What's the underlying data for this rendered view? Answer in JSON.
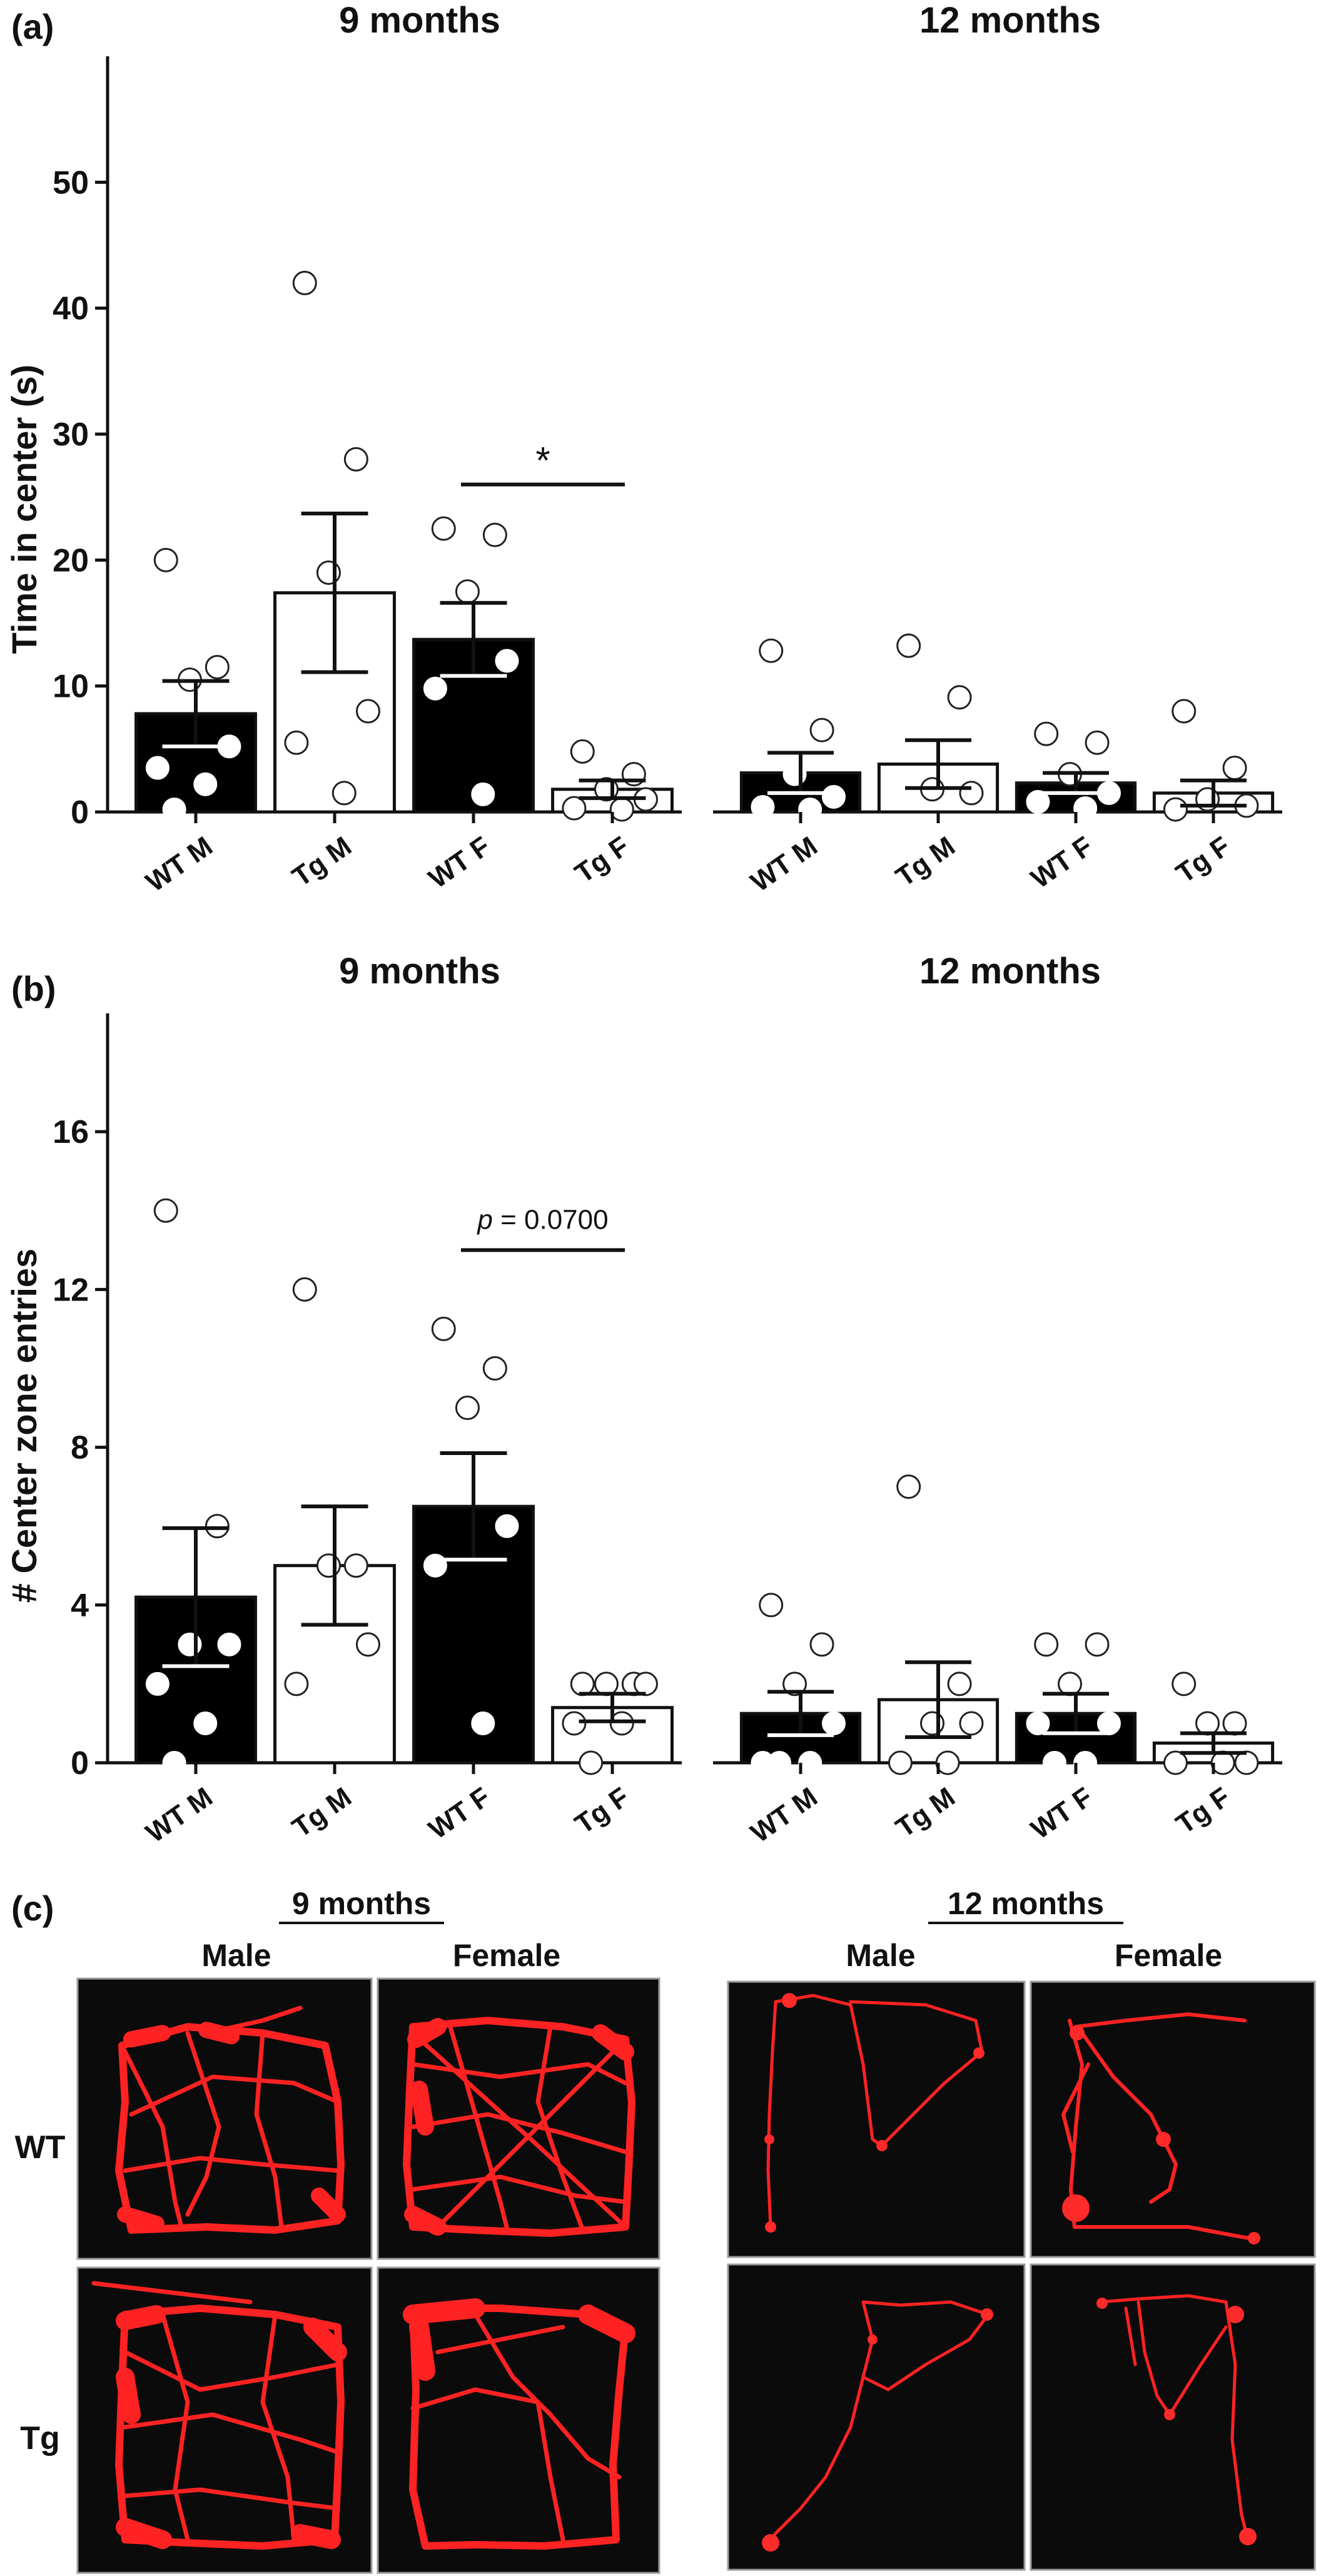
{
  "panels": {
    "a": {
      "label": "(a)"
    },
    "b": {
      "label": "(b)"
    },
    "c": {
      "label": "(c)",
      "age_9": "9 months",
      "age_12": "12 months",
      "col_male": "Male",
      "col_female": "Female",
      "row_wt": "WT",
      "row_tg": "Tg"
    }
  },
  "colors": {
    "bar_wt": "#000000",
    "bar_tg": "#ffffff",
    "trace": "#ff2222",
    "arena": "#0b0b0b"
  },
  "chart_data": [
    {
      "type": "bar",
      "panel": "a",
      "ylabel": "Time in  center (s)",
      "ylim": [
        0,
        60
      ],
      "yticks": [
        0,
        10,
        20,
        30,
        40,
        50
      ],
      "groups": [
        {
          "title": "9 months",
          "categories": [
            "WT M",
            "Tg M",
            "WT F",
            "Tg F"
          ],
          "values": [
            7.8,
            17.4,
            13.7,
            1.8
          ],
          "sem": [
            2.6,
            6.3,
            2.9,
            0.7
          ],
          "points": [
            [
              20,
              11.5,
              10.5,
              5.2,
              3.5,
              2.2,
              0.2
            ],
            [
              42,
              28,
              19,
              8,
              5.5,
              1.5
            ],
            [
              22.5,
              22,
              17.5,
              12,
              9.8,
              1.4
            ],
            [
              4.8,
              3,
              1.8,
              1,
              0.3,
              0.2
            ]
          ],
          "significance": {
            "pair": [
              2,
              3
            ],
            "text": "*"
          }
        },
        {
          "title": "12 months",
          "categories": [
            "WT M",
            "Tg M",
            "WT F",
            "Tg F"
          ],
          "values": [
            3.1,
            3.8,
            2.3,
            1.5
          ],
          "sem": [
            1.6,
            1.9,
            0.8,
            1.0
          ],
          "points": [
            [
              12.8,
              6.5,
              3,
              1.2,
              0.4,
              0.2
            ],
            [
              13.2,
              9.1,
              1.8,
              1.5
            ],
            [
              6.2,
              5.5,
              3,
              1.5,
              0.8,
              0.3
            ],
            [
              8,
              3.5,
              1,
              0.5,
              0.2
            ]
          ],
          "significance": null
        }
      ]
    },
    {
      "type": "bar",
      "panel": "b",
      "ylabel": "# Center zone entries",
      "ylim": [
        0,
        19
      ],
      "yticks": [
        0,
        4,
        8,
        12,
        16
      ],
      "groups": [
        {
          "title": "9 months",
          "categories": [
            "WT M",
            "Tg M",
            "WT F",
            "Tg F"
          ],
          "values": [
            4.2,
            5.0,
            6.5,
            1.4
          ],
          "sem": [
            1.75,
            1.5,
            1.35,
            0.35
          ],
          "points": [
            [
              14,
              6,
              3,
              3,
              2,
              1,
              0
            ],
            [
              12,
              5,
              5,
              3,
              2
            ],
            [
              11,
              10,
              9,
              6,
              5,
              1
            ],
            [
              2,
              2,
              2,
              2,
              1,
              1,
              0
            ]
          ],
          "significance": {
            "pair": [
              2,
              3
            ],
            "p_label": "p",
            "p_value": "= 0.0700"
          }
        },
        {
          "title": "12 months",
          "categories": [
            "WT M",
            "Tg M",
            "WT F",
            "Tg F"
          ],
          "values": [
            1.25,
            1.6,
            1.25,
            0.5
          ],
          "sem": [
            0.55,
            0.95,
            0.5,
            0.25
          ],
          "points": [
            [
              4,
              3,
              2,
              1,
              0,
              0,
              0
            ],
            [
              7,
              2,
              1,
              1,
              0,
              0
            ],
            [
              3,
              3,
              2,
              1,
              1,
              0,
              0
            ],
            [
              2,
              1,
              1,
              0,
              0,
              0
            ]
          ],
          "significance": null
        }
      ]
    }
  ]
}
